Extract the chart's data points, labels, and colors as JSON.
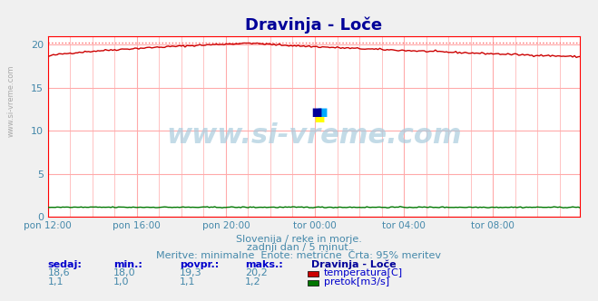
{
  "title": "Dravinja - Loče",
  "title_color": "#000099",
  "bg_color": "#f0f0f0",
  "plot_bg_color": "#ffffff",
  "grid_color": "#ffaaaa",
  "axis_color": "#ff0000",
  "xlabel_color": "#4488aa",
  "ylabel_values": [
    0,
    5,
    10,
    15,
    20
  ],
  "ylim": [
    0,
    21
  ],
  "xlim": [
    0,
    287
  ],
  "xtick_labels": [
    "pon 12:00",
    "pon 16:00",
    "pon 20:00",
    "tor 00:00",
    "tor 04:00",
    "tor 08:00"
  ],
  "xtick_positions": [
    0,
    48,
    96,
    144,
    192,
    240
  ],
  "temp_color": "#cc0000",
  "pretok_color": "#007700",
  "visina_color": "#0000cc",
  "max_line_color": "#ff6666",
  "temp_max": 20.2,
  "temp_min": 18.0,
  "temp_avg": 19.3,
  "temp_sedaj": 18.6,
  "pretok_sedaj": 1.1,
  "pretok_min": 1.0,
  "pretok_avg": 1.1,
  "pretok_max": 1.2,
  "watermark": "www.si-vreme.com",
  "footer_line1": "Slovenija / reke in morje.",
  "footer_line2": "zadnji dan / 5 minut.",
  "footer_line3": "Meritve: minimalne  Enote: metrične  Črta: 95% meritev",
  "footer_color": "#4488aa",
  "legend_title": "Dravinja - Loče",
  "legend_title_color": "#000099",
  "legend_temp_label": "temperatura[C]",
  "legend_pretok_label": "pretok[m3/s]",
  "stats_color": "#4488aa",
  "stats_label_color": "#0000cc"
}
